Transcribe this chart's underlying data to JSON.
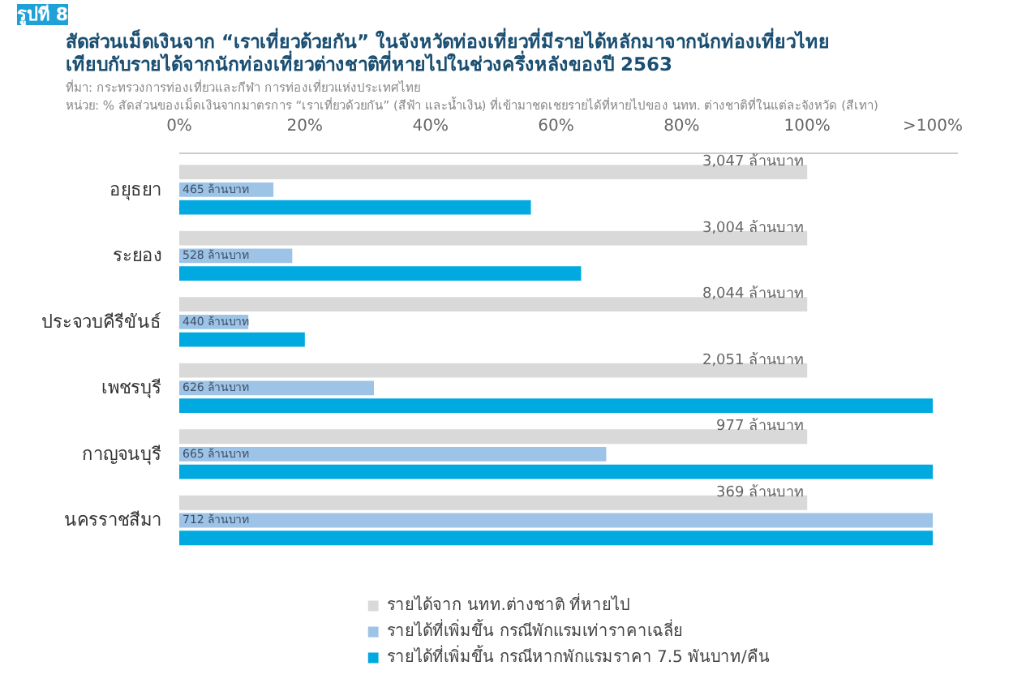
{
  "chart_data": {
    "type": "bar",
    "orientation": "horizontal",
    "title": "สัดส่วนเม็ดเงินจาก “เราเที่ยวด้วยกัน” ในจังหวัดท่องเที่ยวที่มีรายได้หลักมาจากนักท่องเที่ยวไทย เทียบกับรายได้จากนักท่องเที่ยวต่างชาติที่หายไปในช่วงครึ่งหลังของปี 2563",
    "annotations": [
      "รูปที่ 8",
      "ที่มา: กระทรวงการท่องเที่ยวและกีฬา การท่องเที่ยวแห่งประเทศไทย",
      "หน่วย: % สัดส่วนของเม็ดเงินจากมาตรการ “เราเที่ยวด้วยกัน” (สีฟ้า และน้ำเงิน) ที่เข้ามาชดเชยรายได้ที่หายไปของ นทท. ต่างชาติที่ในแต่ละจังหวัด (สีเทา)",
      "3,047 ล้านบาท",
      "3,004 ล้านบาท",
      "8,044 ล้านบาท",
      "2,051 ล้านบาท",
      "977 ล้านบาท",
      "369 ล้านบาท",
      "465 ล้านบาท",
      "528 ล้านบาท",
      "440 ล้านบาท",
      "626 ล้านบาท",
      "665 ล้านบาท",
      "712 ล้านบาท"
    ],
    "categories": [
      "อยุธยา",
      "ระยอง",
      "ประจวบคีรีขันธ์",
      "เพชรบุรี",
      "กาญจนบุรี",
      "นครราชสีมา"
    ],
    "series": [
      {
        "name": "รายได้จาก นทท.ต่างชาติ ที่หายไป",
        "color": "#d9d9d9",
        "values": [
          100,
          100,
          100,
          100,
          100,
          100
        ]
      },
      {
        "name": "รายได้ที่เพิ่มขึ้น กรณีพักแรมเท่าราคาเฉลี่ย",
        "color": "#9dc3e6",
        "values": [
          15,
          18,
          11,
          31,
          68,
          120
        ]
      },
      {
        "name": "รายได้ที่เพิ่มขึ้น กรณีหากพักแรมราคา 7.5 พันบาท/คืน",
        "color": "#00a9e0",
        "values": [
          56,
          64,
          20,
          120,
          120,
          120
        ]
      }
    ],
    "xlim": [
      0,
      124
    ],
    "xticks": [
      {
        "value": 0,
        "label": "0%"
      },
      {
        "value": 20,
        "label": "20%"
      },
      {
        "value": 40,
        "label": "40%"
      },
      {
        "value": 60,
        "label": "60%"
      },
      {
        "value": 80,
        "label": "80%"
      },
      {
        "value": 100,
        "label": "100%"
      },
      {
        "value": 120,
        "label": ">100%"
      }
    ],
    "grid": false,
    "legend": "bottom"
  }
}
